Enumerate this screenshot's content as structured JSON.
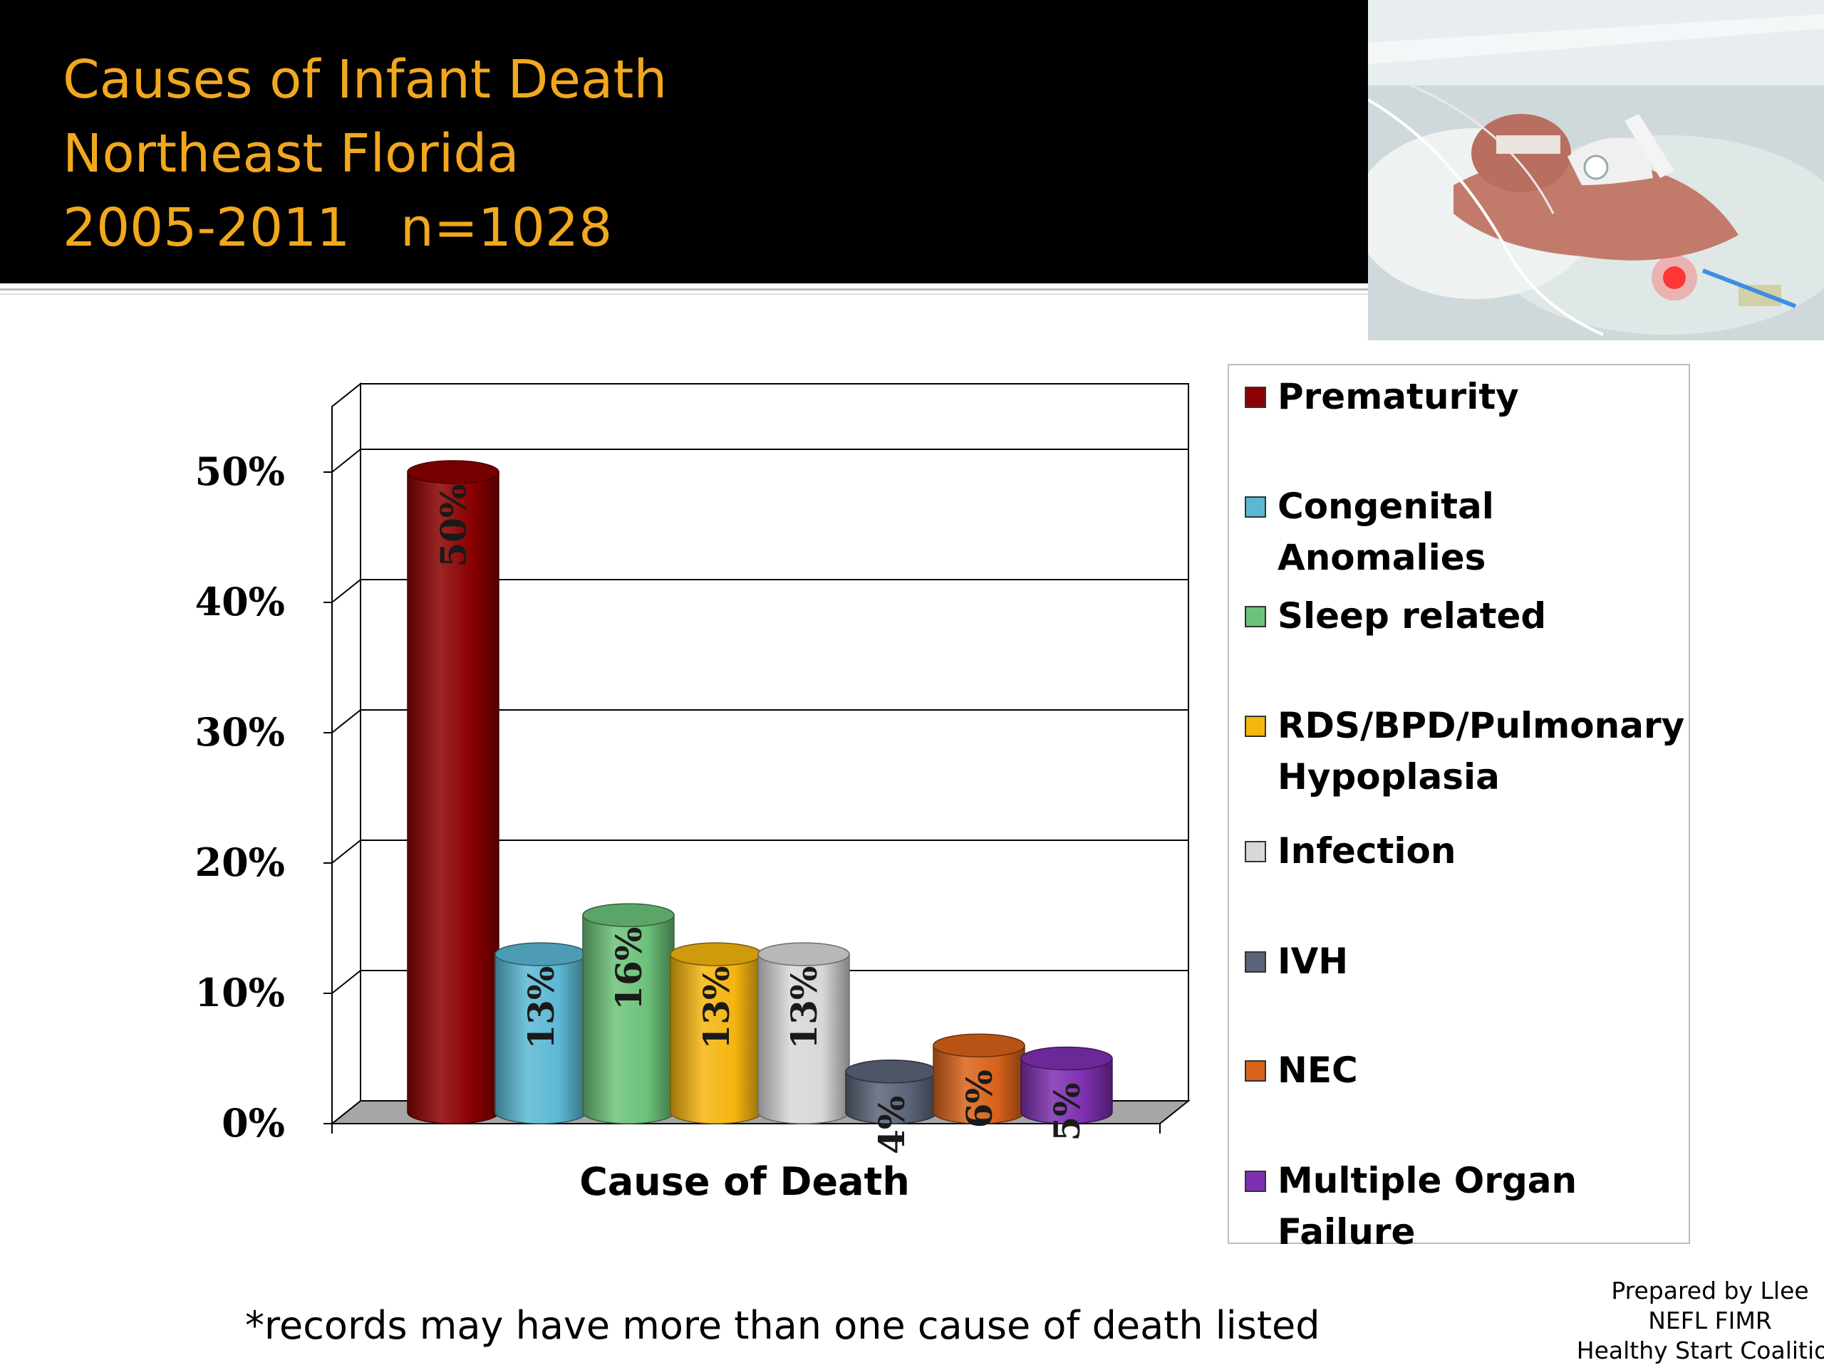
{
  "slide": {
    "title_lines": [
      "Causes of Infant Death",
      "Northeast Florida",
      "2005-2011   n=1028"
    ],
    "footnote": "*records may have more than one cause of death listed",
    "credit_lines": [
      "Prepared by Llee",
      "NEFL FIMR",
      "Healthy Start Coalition"
    ],
    "colors": {
      "title": "#f2a81d",
      "header_background": "#000000"
    }
  },
  "chart_data": {
    "type": "bar",
    "title": "",
    "xlabel": "Cause of Death",
    "ylabel": "",
    "ylim": [
      0,
      50
    ],
    "y_ticks": [
      "0%",
      "10%",
      "20%",
      "30%",
      "40%",
      "50%"
    ],
    "grid": true,
    "legend_position": "right",
    "categories": [
      "Prematurity",
      "Congenital Anomalies",
      "Sleep related",
      "RDS/BPD/Pulmonary Hypoplasia",
      "Infection",
      "IVH",
      "NEC",
      "Multiple Organ Failure"
    ],
    "values": [
      50,
      13,
      16,
      13,
      13,
      4,
      6,
      5
    ],
    "value_labels": [
      "50%",
      "13%",
      "16%",
      "13%",
      "13%",
      "4%",
      "6%",
      "5%"
    ],
    "colors": [
      "#8b0000",
      "#5bb8d4",
      "#6cc27a",
      "#f5b50f",
      "#d8d8d8",
      "#5a6478",
      "#d8621a",
      "#7e2fb0"
    ]
  }
}
